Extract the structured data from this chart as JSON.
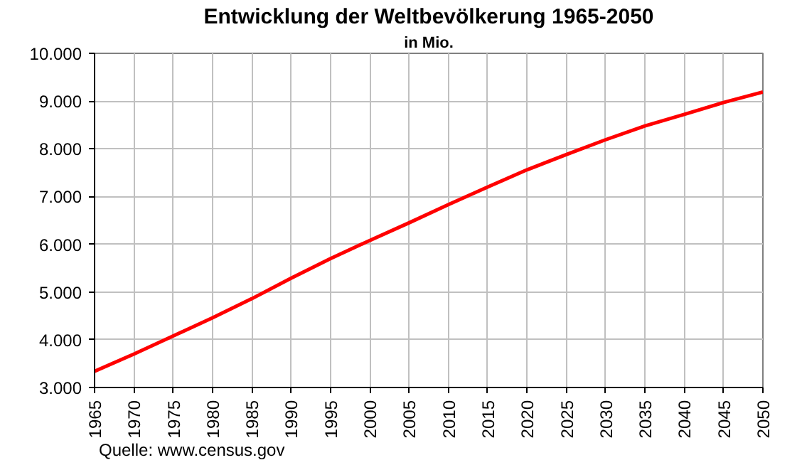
{
  "chart_data": {
    "type": "line",
    "title": "Entwicklung der Weltbevölkerung 1965-2050",
    "subtitle": "in Mio.",
    "x": [
      1965,
      1970,
      1975,
      1980,
      1985,
      1990,
      1995,
      2000,
      2005,
      2010,
      2015,
      2020,
      2025,
      2030,
      2035,
      2040,
      2045,
      2050
    ],
    "series": [
      {
        "color": "#ff0000",
        "values": [
          3340,
          3700,
          4080,
          4460,
          4860,
          5290,
          5700,
          6080,
          6450,
          6830,
          7200,
          7560,
          7880,
          8190,
          8480,
          8720,
          8970,
          9190
        ]
      }
    ],
    "xlim": [
      1965,
      2050
    ],
    "xticks": [
      1965,
      1970,
      1975,
      1980,
      1985,
      1990,
      1995,
      2000,
      2005,
      2010,
      2015,
      2020,
      2025,
      2030,
      2035,
      2040,
      2045,
      2050
    ],
    "ylim": [
      3000,
      10000
    ],
    "yticks": [
      {
        "value": 3000,
        "label": "3.000"
      },
      {
        "value": 4000,
        "label": "4.000"
      },
      {
        "value": 5000,
        "label": "5.000"
      },
      {
        "value": 6000,
        "label": "6.000"
      },
      {
        "value": 7000,
        "label": "7.000"
      },
      {
        "value": 8000,
        "label": "8.000"
      },
      {
        "value": 9000,
        "label": "9.000"
      },
      {
        "value": 10000,
        "label": "10.000"
      }
    ],
    "grid": true,
    "annotations": [
      "Quelle: www.census.gov"
    ]
  }
}
